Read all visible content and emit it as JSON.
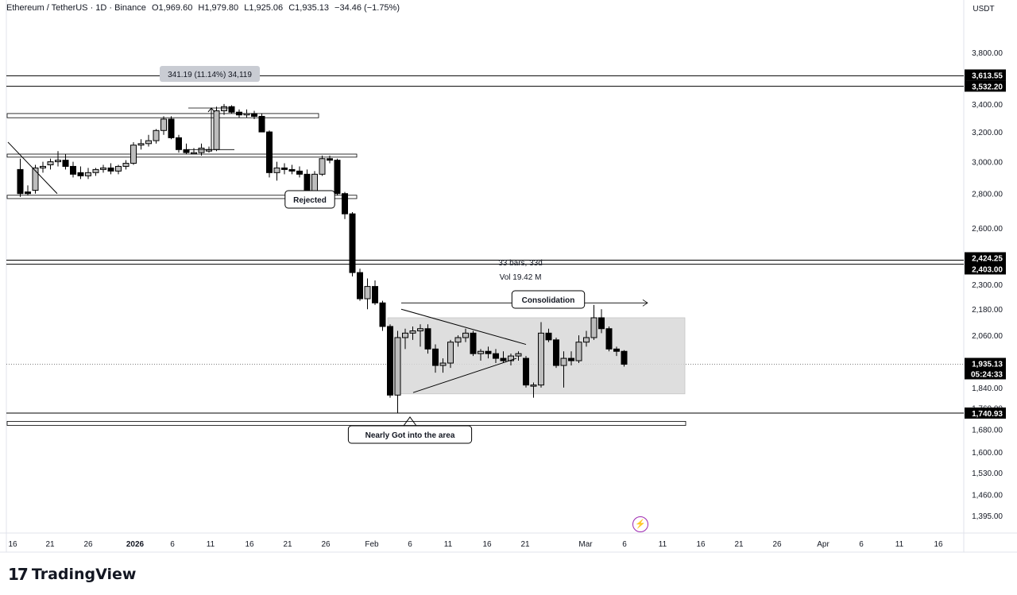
{
  "header": {
    "symbol": "Ethereum / TetherUS · 1D · Binance",
    "open": "O1,969.60",
    "high": "H1,979.80",
    "low": "L1,925.06",
    "close": "C1,935.13",
    "change": "−34.46 (−1.75%)"
  },
  "currency": "USDT",
  "brand": "TradingView",
  "colors": {
    "up": "#ffffff",
    "down": "#000000",
    "border": "#000000",
    "zone": "#d9d9d9",
    "arrow": "#9c27b0"
  },
  "chart_data": {
    "type": "candlestick",
    "y_scale": "log",
    "ylim": [
      1345,
      4100
    ],
    "y_ticks": [
      "3,800.00",
      "3,400.00",
      "3,200.00",
      "3,000.00",
      "2,800.00",
      "2,600.00",
      "2,300.00",
      "2,180.00",
      "2,060.00",
      "1,840.00",
      "1,760.00",
      "1,680.00",
      "1,600.00",
      "1,530.00",
      "1,460.00",
      "1,395.00"
    ],
    "x_ticks": [
      "16",
      "21",
      "26",
      "2026",
      "6",
      "11",
      "16",
      "21",
      "26",
      "Feb",
      "6",
      "11",
      "16",
      "21",
      "Mar",
      "6",
      "11",
      "16",
      "21",
      "26",
      "Apr",
      "6",
      "11",
      "16"
    ],
    "price_labels": [
      {
        "text": "3,613.55",
        "value": 3613.55
      },
      {
        "text": "3,532.20",
        "value": 3532.2
      },
      {
        "text": "2,424.25",
        "value": 2424.25
      },
      {
        "text": "2,403.00",
        "value": 2403.0
      },
      {
        "text": "1,935.13",
        "value": 1935.13
      },
      {
        "text": "05:24:33",
        "value": 1935.13
      },
      {
        "text": "1,740.93",
        "value": 1740.93
      }
    ],
    "candles": [
      {
        "o": 2950,
        "h": 3020,
        "l": 2780,
        "c": 2800
      },
      {
        "o": 2810,
        "h": 2850,
        "l": 2790,
        "c": 2800
      },
      {
        "o": 2820,
        "h": 2980,
        "l": 2800,
        "c": 2960
      },
      {
        "o": 2960,
        "h": 3000,
        "l": 2930,
        "c": 2970
      },
      {
        "o": 2980,
        "h": 3020,
        "l": 2950,
        "c": 3000
      },
      {
        "o": 3000,
        "h": 3070,
        "l": 2970,
        "c": 3010
      },
      {
        "o": 3010,
        "h": 3050,
        "l": 2950,
        "c": 2970
      },
      {
        "o": 2970,
        "h": 3000,
        "l": 2900,
        "c": 2920
      },
      {
        "o": 2930,
        "h": 2970,
        "l": 2890,
        "c": 2910
      },
      {
        "o": 2910,
        "h": 2960,
        "l": 2890,
        "c": 2930
      },
      {
        "o": 2930,
        "h": 2960,
        "l": 2910,
        "c": 2950
      },
      {
        "o": 2950,
        "h": 2980,
        "l": 2930,
        "c": 2960
      },
      {
        "o": 2960,
        "h": 2990,
        "l": 2920,
        "c": 2940
      },
      {
        "o": 2940,
        "h": 2980,
        "l": 2920,
        "c": 2970
      },
      {
        "o": 2970,
        "h": 3010,
        "l": 2950,
        "c": 2990
      },
      {
        "o": 2990,
        "h": 3130,
        "l": 2980,
        "c": 3110
      },
      {
        "o": 3110,
        "h": 3150,
        "l": 3080,
        "c": 3120
      },
      {
        "o": 3120,
        "h": 3180,
        "l": 3100,
        "c": 3140
      },
      {
        "o": 3140,
        "h": 3220,
        "l": 3120,
        "c": 3210
      },
      {
        "o": 3210,
        "h": 3310,
        "l": 3180,
        "c": 3290
      },
      {
        "o": 3290,
        "h": 3310,
        "l": 3150,
        "c": 3160
      },
      {
        "o": 3160,
        "h": 3180,
        "l": 3060,
        "c": 3080
      },
      {
        "o": 3080,
        "h": 3120,
        "l": 3050,
        "c": 3060
      },
      {
        "o": 3060,
        "h": 3090,
        "l": 3050,
        "c": 3060
      },
      {
        "o": 3060,
        "h": 3120,
        "l": 3040,
        "c": 3090
      },
      {
        "o": 3070,
        "h": 3100,
        "l": 3060,
        "c": 3080
      },
      {
        "o": 3080,
        "h": 3380,
        "l": 3070,
        "c": 3350
      },
      {
        "o": 3350,
        "h": 3400,
        "l": 3320,
        "c": 3380
      },
      {
        "o": 3380,
        "h": 3390,
        "l": 3330,
        "c": 3340
      },
      {
        "o": 3340,
        "h": 3360,
        "l": 3300,
        "c": 3320
      },
      {
        "o": 3320,
        "h": 3360,
        "l": 3300,
        "c": 3330
      },
      {
        "o": 3330,
        "h": 3350,
        "l": 3290,
        "c": 3310
      },
      {
        "o": 3310,
        "h": 3330,
        "l": 3200,
        "c": 3200
      },
      {
        "o": 3200,
        "h": 3210,
        "l": 2900,
        "c": 2930
      },
      {
        "o": 2930,
        "h": 3000,
        "l": 2880,
        "c": 2960
      },
      {
        "o": 2960,
        "h": 2990,
        "l": 2920,
        "c": 2950
      },
      {
        "o": 2950,
        "h": 2980,
        "l": 2920,
        "c": 2940
      },
      {
        "o": 2940,
        "h": 2970,
        "l": 2900,
        "c": 2920
      },
      {
        "o": 2920,
        "h": 2950,
        "l": 2780,
        "c": 2800
      },
      {
        "o": 2800,
        "h": 2940,
        "l": 2790,
        "c": 2920
      },
      {
        "o": 2920,
        "h": 3040,
        "l": 2910,
        "c": 3020
      },
      {
        "o": 3020,
        "h": 3040,
        "l": 2990,
        "c": 3010
      },
      {
        "o": 3010,
        "h": 3020,
        "l": 2790,
        "c": 2800
      },
      {
        "o": 2800,
        "h": 2810,
        "l": 2650,
        "c": 2680
      },
      {
        "o": 2680,
        "h": 2690,
        "l": 2340,
        "c": 2360
      },
      {
        "o": 2360,
        "h": 2380,
        "l": 2220,
        "c": 2230
      },
      {
        "o": 2230,
        "h": 2330,
        "l": 2180,
        "c": 2290
      },
      {
        "o": 2290,
        "h": 2320,
        "l": 2200,
        "c": 2210
      },
      {
        "o": 2210,
        "h": 2220,
        "l": 2080,
        "c": 2100
      },
      {
        "o": 2100,
        "h": 2110,
        "l": 1800,
        "c": 1810
      },
      {
        "o": 1810,
        "h": 2080,
        "l": 1740,
        "c": 2050
      },
      {
        "o": 2050,
        "h": 2090,
        "l": 2000,
        "c": 2070
      },
      {
        "o": 2070,
        "h": 2100,
        "l": 2040,
        "c": 2080
      },
      {
        "o": 2080,
        "h": 2110,
        "l": 2010,
        "c": 2090
      },
      {
        "o": 2090,
        "h": 2110,
        "l": 1980,
        "c": 2000
      },
      {
        "o": 2000,
        "h": 2020,
        "l": 1900,
        "c": 1930
      },
      {
        "o": 1930,
        "h": 1960,
        "l": 1900,
        "c": 1940
      },
      {
        "o": 1940,
        "h": 2040,
        "l": 1920,
        "c": 2030
      },
      {
        "o": 2030,
        "h": 2060,
        "l": 2010,
        "c": 2050
      },
      {
        "o": 2050,
        "h": 2090,
        "l": 2030,
        "c": 2070
      },
      {
        "o": 2070,
        "h": 2080,
        "l": 1970,
        "c": 1980
      },
      {
        "o": 1980,
        "h": 2000,
        "l": 1950,
        "c": 1990
      },
      {
        "o": 1990,
        "h": 2010,
        "l": 1960,
        "c": 1980
      },
      {
        "o": 1980,
        "h": 2000,
        "l": 1940,
        "c": 1960
      },
      {
        "o": 1960,
        "h": 1990,
        "l": 1940,
        "c": 1950
      },
      {
        "o": 1950,
        "h": 1980,
        "l": 1930,
        "c": 1970
      },
      {
        "o": 1970,
        "h": 1990,
        "l": 1950,
        "c": 1980
      },
      {
        "o": 1960,
        "h": 1970,
        "l": 1840,
        "c": 1850
      },
      {
        "o": 1850,
        "h": 1860,
        "l": 1800,
        "c": 1850
      },
      {
        "o": 1850,
        "h": 2120,
        "l": 1840,
        "c": 2070
      },
      {
        "o": 2070,
        "h": 2090,
        "l": 2030,
        "c": 2040
      },
      {
        "o": 2040,
        "h": 2050,
        "l": 1920,
        "c": 1930
      },
      {
        "o": 1930,
        "h": 1990,
        "l": 1840,
        "c": 1960
      },
      {
        "o": 1960,
        "h": 1990,
        "l": 1930,
        "c": 1950
      },
      {
        "o": 1950,
        "h": 2060,
        "l": 1940,
        "c": 2030
      },
      {
        "o": 2030,
        "h": 2080,
        "l": 2010,
        "c": 2050
      },
      {
        "o": 2050,
        "h": 2200,
        "l": 2040,
        "c": 2140
      },
      {
        "o": 2140,
        "h": 2180,
        "l": 2070,
        "c": 2090
      },
      {
        "o": 2090,
        "h": 2100,
        "l": 1990,
        "c": 2000
      },
      {
        "o": 2000,
        "h": 2010,
        "l": 1970,
        "c": 1990
      },
      {
        "o": 1990,
        "h": 1995,
        "l": 1925,
        "c": 1935
      }
    ],
    "annotations": [
      {
        "text": "341.19 (11.14%) 34,119"
      },
      {
        "text": "Rejected"
      },
      {
        "text": "33 bars, 33d"
      },
      {
        "text": "Vol 19.42 M"
      },
      {
        "text": "Consolidation"
      },
      {
        "text": "Nearly Got into the area"
      }
    ]
  }
}
